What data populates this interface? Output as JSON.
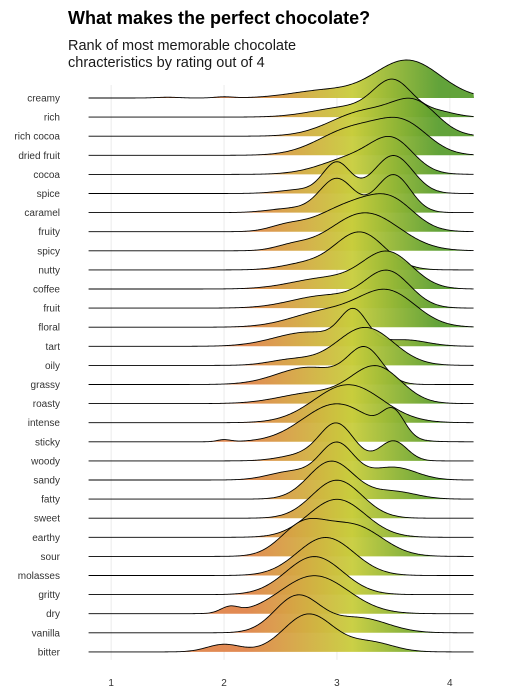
{
  "chart_data": {
    "type": "ridgeline",
    "title": "What makes the perfect chocolate?",
    "subtitle": "Rank of most memorable chocolate chracteristics by rating out of 4",
    "xlabel": "",
    "ylabel": "",
    "xlim": [
      0.6,
      4.4
    ],
    "x_ticks": [
      1,
      2,
      3,
      4
    ],
    "grid": true,
    "fill_gradient": "rating",
    "colors": {
      "low": "#e0844a",
      "mid": "#c8cd3c",
      "high": "#5a9e2f",
      "line": "#000000",
      "grid": "#ebebeb"
    },
    "categories": [
      "creamy",
      "rich",
      "rich cocoa",
      "dried fruit",
      "cocoa",
      "spice",
      "caramel",
      "fruity",
      "spicy",
      "nutty",
      "coffee",
      "fruit",
      "floral",
      "tart",
      "oily",
      "grassy",
      "roasty",
      "intense",
      "sticky",
      "woody",
      "sandy",
      "fatty",
      "sweet",
      "earthy",
      "sour",
      "molasses",
      "gritty",
      "dry",
      "vanilla",
      "bitter"
    ],
    "series": [
      {
        "name": "creamy",
        "mean": 3.55,
        "peaks": [
          [
            2.9,
            0.3,
            0.2
          ],
          [
            3.5,
            0.25,
            0.55
          ],
          [
            3.75,
            0.25,
            0.55
          ],
          [
            2.0,
            0.08,
            0.03
          ],
          [
            1.5,
            0.1,
            0.02
          ]
        ]
      },
      {
        "name": "rich",
        "mean": 3.5,
        "peaks": [
          [
            3.5,
            0.17,
            1.0
          ],
          [
            3.1,
            0.3,
            0.3
          ],
          [
            3.9,
            0.15,
            0.15
          ]
        ]
      },
      {
        "name": "rich cocoa",
        "mean": 3.5,
        "peaks": [
          [
            3.25,
            0.3,
            0.6
          ],
          [
            3.7,
            0.2,
            0.7
          ]
        ]
      },
      {
        "name": "dried fruit",
        "mean": 3.4,
        "peaks": [
          [
            3.15,
            0.3,
            0.6
          ],
          [
            3.6,
            0.22,
            0.6
          ]
        ]
      },
      {
        "name": "cocoa",
        "mean": 3.4,
        "peaks": [
          [
            3.2,
            0.3,
            0.5
          ],
          [
            3.5,
            0.18,
            0.7
          ]
        ]
      },
      {
        "name": "spice",
        "mean": 3.3,
        "peaks": [
          [
            3.0,
            0.12,
            0.75
          ],
          [
            3.5,
            0.17,
            0.95
          ],
          [
            2.7,
            0.2,
            0.1
          ]
        ]
      },
      {
        "name": "caramel",
        "mean": 3.3,
        "peaks": [
          [
            3.0,
            0.15,
            0.8
          ],
          [
            3.5,
            0.15,
            0.9
          ],
          [
            2.6,
            0.2,
            0.1
          ]
        ]
      },
      {
        "name": "fruity",
        "mean": 3.3,
        "peaks": [
          [
            3.15,
            0.3,
            0.65
          ],
          [
            3.5,
            0.2,
            0.5
          ],
          [
            2.55,
            0.15,
            0.12
          ]
        ]
      },
      {
        "name": "spicy",
        "mean": 3.3,
        "peaks": [
          [
            3.25,
            0.3,
            1.0
          ],
          [
            2.6,
            0.15,
            0.12
          ]
        ]
      },
      {
        "name": "nutty",
        "mean": 3.3,
        "peaks": [
          [
            3.2,
            0.22,
            1.0
          ],
          [
            2.7,
            0.2,
            0.15
          ]
        ]
      },
      {
        "name": "coffee",
        "mean": 3.3,
        "peaks": [
          [
            3.45,
            0.22,
            1.0
          ],
          [
            2.9,
            0.3,
            0.3
          ]
        ]
      },
      {
        "name": "fruit",
        "mean": 3.3,
        "peaks": [
          [
            3.45,
            0.2,
            1.0
          ],
          [
            2.9,
            0.3,
            0.35
          ]
        ]
      },
      {
        "name": "floral",
        "mean": 3.3,
        "peaks": [
          [
            3.45,
            0.25,
            0.9
          ],
          [
            2.9,
            0.3,
            0.4
          ]
        ]
      },
      {
        "name": "tart",
        "mean": 3.1,
        "peaks": [
          [
            3.15,
            0.12,
            1.0
          ],
          [
            2.75,
            0.3,
            0.45
          ],
          [
            3.6,
            0.2,
            0.2
          ]
        ]
      },
      {
        "name": "oily",
        "mean": 3.2,
        "peaks": [
          [
            3.25,
            0.25,
            1.0
          ],
          [
            2.6,
            0.2,
            0.15
          ]
        ]
      },
      {
        "name": "grassy",
        "mean": 3.1,
        "peaks": [
          [
            3.25,
            0.15,
            0.9
          ],
          [
            2.75,
            0.28,
            0.45
          ]
        ]
      },
      {
        "name": "roasty",
        "mean": 3.2,
        "peaks": [
          [
            3.35,
            0.22,
            1.0
          ],
          [
            2.8,
            0.3,
            0.3
          ]
        ]
      },
      {
        "name": "intense",
        "mean": 3.1,
        "peaks": [
          [
            3.1,
            0.3,
            0.8
          ]
        ]
      },
      {
        "name": "sticky",
        "mean": 3.1,
        "peaks": [
          [
            3.0,
            0.3,
            0.55
          ],
          [
            3.5,
            0.1,
            0.35
          ],
          [
            2.0,
            0.06,
            0.03
          ]
        ]
      },
      {
        "name": "woody",
        "mean": 3.1,
        "peaks": [
          [
            3.0,
            0.15,
            0.9
          ],
          [
            3.5,
            0.12,
            0.5
          ],
          [
            2.7,
            0.2,
            0.15
          ]
        ]
      },
      {
        "name": "sandy",
        "mean": 3.0,
        "peaks": [
          [
            3.0,
            0.15,
            0.85
          ],
          [
            3.5,
            0.2,
            0.3
          ],
          [
            2.6,
            0.2,
            0.2
          ]
        ]
      },
      {
        "name": "fatty",
        "mean": 3.0,
        "peaks": [
          [
            2.95,
            0.2,
            1.0
          ],
          [
            3.5,
            0.2,
            0.2
          ]
        ]
      },
      {
        "name": "sweet",
        "mean": 3.0,
        "peaks": [
          [
            3.0,
            0.22,
            1.0
          ]
        ]
      },
      {
        "name": "earthy",
        "mean": 3.0,
        "peaks": [
          [
            3.0,
            0.25,
            1.0
          ]
        ]
      },
      {
        "name": "sour",
        "mean": 2.9,
        "peaks": [
          [
            2.7,
            0.2,
            0.7
          ],
          [
            3.15,
            0.25,
            0.7
          ]
        ]
      },
      {
        "name": "molasses",
        "mean": 2.9,
        "peaks": [
          [
            2.9,
            0.25,
            1.0
          ]
        ]
      },
      {
        "name": "gritty",
        "mean": 2.8,
        "peaks": [
          [
            2.8,
            0.25,
            1.0
          ]
        ]
      },
      {
        "name": "dry",
        "mean": 2.8,
        "peaks": [
          [
            2.8,
            0.3,
            0.75
          ],
          [
            2.05,
            0.08,
            0.12
          ]
        ]
      },
      {
        "name": "vanilla",
        "mean": 2.7,
        "peaks": [
          [
            2.65,
            0.2,
            1.0
          ],
          [
            3.2,
            0.25,
            0.4
          ]
        ]
      },
      {
        "name": "bitter",
        "mean": 2.7,
        "peaks": [
          [
            2.75,
            0.22,
            1.0
          ],
          [
            2.0,
            0.15,
            0.2
          ],
          [
            3.3,
            0.2,
            0.25
          ]
        ]
      }
    ]
  }
}
